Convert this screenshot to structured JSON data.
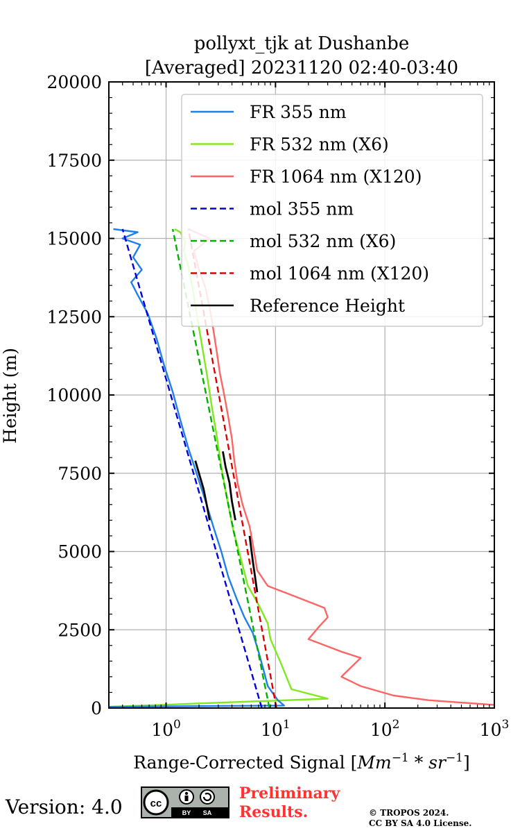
{
  "chart_data": {
    "type": "line",
    "title_lines": [
      "pollyxt_tjk at Dushanbe",
      "[Averaged] 20231120 02:40-03:40"
    ],
    "xlabel_text": "Range-Corrected Signal [",
    "xlabel_unit_mm": "Mm",
    "xlabel_unit_sr": "sr",
    "xlabel_exp": "−1",
    "xlabel_mult": " * ",
    "xlabel_close": "]",
    "ylabel": "Height (m)",
    "xscale": "log",
    "xlim": [
      0.3,
      1000
    ],
    "ylim": [
      0,
      20000
    ],
    "x_tick_base": "10",
    "x_tick_exponents": [
      "0",
      "1",
      "2",
      "3"
    ],
    "y_ticks": [
      "0",
      "2500",
      "5000",
      "7500",
      "10000",
      "12500",
      "15000",
      "17500",
      "20000"
    ],
    "grid": true,
    "legend_position": "top-right",
    "series": [
      {
        "name": "FR 355 nm",
        "color": "#1f7fe8",
        "style": "solid",
        "points": [
          [
            0.3,
            40
          ],
          [
            12,
            80
          ],
          [
            10.5,
            250
          ],
          [
            8.5,
            700
          ],
          [
            7.8,
            1200
          ],
          [
            7.0,
            1800
          ],
          [
            6.2,
            2400
          ],
          [
            5.2,
            2900
          ],
          [
            4.4,
            3500
          ],
          [
            3.7,
            4200
          ],
          [
            3.2,
            5000
          ],
          [
            2.7,
            5800
          ],
          [
            2.3,
            6600
          ],
          [
            1.9,
            7500
          ],
          [
            1.6,
            8300
          ],
          [
            1.35,
            9200
          ],
          [
            1.15,
            10100
          ],
          [
            0.95,
            11000
          ],
          [
            0.82,
            11800
          ],
          [
            0.68,
            12600
          ],
          [
            0.55,
            13200
          ],
          [
            0.48,
            13600
          ],
          [
            0.6,
            14000
          ],
          [
            0.5,
            14400
          ],
          [
            0.58,
            14800
          ],
          [
            0.4,
            15000
          ],
          [
            0.55,
            15200
          ],
          [
            0.33,
            15300
          ]
        ]
      },
      {
        "name": "FR 532 nm (X6)",
        "color": "#7fe81f",
        "style": "solid",
        "points": [
          [
            0.3,
            40
          ],
          [
            30,
            300
          ],
          [
            14,
            600
          ],
          [
            11,
            1500
          ],
          [
            9,
            2200
          ],
          [
            8.5,
            2700
          ],
          [
            7,
            3300
          ],
          [
            5.6,
            3900
          ],
          [
            4.8,
            4800
          ],
          [
            4.1,
            5700
          ],
          [
            3.6,
            6700
          ],
          [
            3.2,
            7700
          ],
          [
            2.9,
            8700
          ],
          [
            2.6,
            9700
          ],
          [
            2.35,
            10700
          ],
          [
            2.1,
            11700
          ],
          [
            1.9,
            12600
          ],
          [
            1.75,
            13400
          ],
          [
            1.6,
            14100
          ],
          [
            1.45,
            14600
          ],
          [
            1.5,
            14900
          ],
          [
            1.35,
            15200
          ],
          [
            1.2,
            15300
          ]
        ]
      },
      {
        "name": "FR 1064 nm (X120)",
        "color": "#ff6464",
        "style": "solid",
        "points": [
          [
            1000,
            100
          ],
          [
            250,
            250
          ],
          [
            120,
            400
          ],
          [
            60,
            700
          ],
          [
            40,
            1000
          ],
          [
            60,
            1600
          ],
          [
            40,
            1800
          ],
          [
            20,
            2200
          ],
          [
            25,
            2600
          ],
          [
            30,
            2900
          ],
          [
            28,
            3200
          ],
          [
            20,
            3400
          ],
          [
            12,
            3700
          ],
          [
            8.5,
            3900
          ],
          [
            6.8,
            4400
          ],
          [
            6.3,
            5100
          ],
          [
            5.8,
            5800
          ],
          [
            5.0,
            6500
          ],
          [
            4.5,
            7200
          ],
          [
            4.2,
            7900
          ],
          [
            4.0,
            8600
          ],
          [
            3.7,
            9300
          ],
          [
            3.4,
            10000
          ],
          [
            3.1,
            10700
          ],
          [
            2.9,
            11400
          ],
          [
            2.7,
            12100
          ],
          [
            2.5,
            12800
          ],
          [
            2.3,
            13400
          ],
          [
            2.0,
            14000
          ],
          [
            1.8,
            14600
          ],
          [
            2.5,
            15000
          ],
          [
            1.6,
            15300
          ]
        ]
      },
      {
        "name": "mol 355 nm",
        "color": "#0000dd",
        "style": "dashed",
        "points": [
          [
            7.5,
            0
          ],
          [
            0.4,
            15300
          ]
        ]
      },
      {
        "name": "mol 532 nm (X6)",
        "color": "#00b000",
        "style": "dashed",
        "points": [
          [
            8.8,
            0
          ],
          [
            1.15,
            15300
          ]
        ]
      },
      {
        "name": "mol 1064 nm (X120)",
        "color": "#dd0000",
        "style": "dashed",
        "points": [
          [
            10.2,
            0
          ],
          [
            1.6,
            15300
          ]
        ]
      },
      {
        "name": "Reference Height",
        "color": "#000000",
        "style": "solid",
        "segments": [
          [
            [
              2.5,
              6000
            ],
            [
              2.35,
              6500
            ],
            [
              2.2,
              7000
            ],
            [
              2.0,
              7500
            ],
            [
              1.85,
              7900
            ]
          ],
          [
            [
              4.3,
              6000
            ],
            [
              4.0,
              6600
            ],
            [
              3.8,
              7200
            ],
            [
              3.5,
              7700
            ],
            [
              3.3,
              8200
            ]
          ],
          [
            [
              6.8,
              3700
            ],
            [
              6.5,
              4200
            ],
            [
              6.2,
              4700
            ],
            [
              6.0,
              5100
            ],
            [
              5.8,
              5500
            ]
          ]
        ]
      }
    ]
  },
  "footer": {
    "version": "Version: 4.0",
    "cc_left": "cc",
    "cc_by": "BY",
    "cc_sa": "SA",
    "preliminary_line1": "Preliminary",
    "preliminary_line2": "Results.",
    "copyright_line1": "© TROPOS 2024.",
    "copyright_line2": "CC BY SA 4.0 License."
  }
}
